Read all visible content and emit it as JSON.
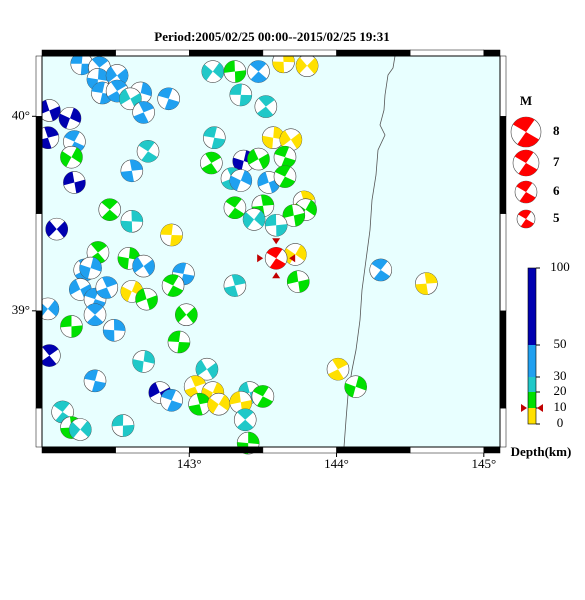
{
  "map": {
    "title": "Period:2005/02/25 00:00--2015/02/25 19:31",
    "xlim": [
      142,
      145.11
    ],
    "ylim": [
      38.3,
      40.31
    ],
    "xticks": [
      {
        "value": 143,
        "label": "143°"
      },
      {
        "value": 144,
        "label": "144°"
      },
      {
        "value": 145,
        "label": "145°"
      }
    ],
    "yticks": [
      {
        "value": 39,
        "label": "39°"
      },
      {
        "value": 40,
        "label": "40°"
      }
    ],
    "magnitude_legend": {
      "title": "M",
      "values": [
        8,
        7,
        6,
        5
      ],
      "color": "#ff0000"
    },
    "depth_scale": {
      "label": "Depth(km)",
      "ticks": [
        0,
        10,
        20,
        30,
        50,
        100
      ],
      "band_colors": [
        "#ffe000",
        "#00e000",
        "#20c8c8",
        "#20a0f0",
        "#0000b0"
      ]
    },
    "mainshock": {
      "lon": 143.59,
      "lat": 39.27,
      "depth": 10,
      "color": "#ff0000"
    },
    "events": [
      [
        142.27,
        40.27,
        40
      ],
      [
        142.39,
        40.25,
        40
      ],
      [
        142.38,
        40.19,
        40
      ],
      [
        142.51,
        40.21,
        40
      ],
      [
        142.41,
        40.12,
        40
      ],
      [
        142.51,
        40.13,
        40
      ],
      [
        142.67,
        40.12,
        40
      ],
      [
        142.6,
        40.09,
        25
      ],
      [
        142.86,
        40.09,
        40
      ],
      [
        142.69,
        40.02,
        40
      ],
      [
        142.19,
        39.99,
        70
      ],
      [
        142.05,
        40.03,
        70
      ],
      [
        142.22,
        39.87,
        40
      ],
      [
        142.04,
        39.89,
        70
      ],
      [
        142.2,
        39.79,
        15
      ],
      [
        142.22,
        39.66,
        70
      ],
      [
        142.72,
        39.82,
        25
      ],
      [
        142.61,
        39.72,
        40
      ],
      [
        143.16,
        40.23,
        25
      ],
      [
        143.31,
        40.23,
        15
      ],
      [
        143.47,
        40.23,
        40
      ],
      [
        143.64,
        40.28,
        5
      ],
      [
        143.8,
        40.26,
        5
      ],
      [
        143.35,
        40.11,
        25
      ],
      [
        143.52,
        40.05,
        25
      ],
      [
        143.57,
        39.89,
        5
      ],
      [
        143.69,
        39.88,
        5
      ],
      [
        143.17,
        39.89,
        25
      ],
      [
        143.15,
        39.76,
        15
      ],
      [
        143.37,
        39.77,
        70
      ],
      [
        143.47,
        39.78,
        15
      ],
      [
        143.65,
        39.79,
        15
      ],
      [
        143.29,
        39.68,
        25
      ],
      [
        143.35,
        39.67,
        40
      ],
      [
        143.54,
        39.66,
        40
      ],
      [
        143.65,
        39.69,
        15
      ],
      [
        143.78,
        39.56,
        5
      ],
      [
        143.79,
        39.52,
        15
      ],
      [
        143.71,
        39.49,
        15
      ],
      [
        143.31,
        39.53,
        15
      ],
      [
        143.5,
        39.54,
        15
      ],
      [
        143.44,
        39.47,
        25
      ],
      [
        143.59,
        39.44,
        25
      ],
      [
        142.46,
        39.52,
        15
      ],
      [
        142.61,
        39.46,
        25
      ],
      [
        142.1,
        39.42,
        70
      ],
      [
        142.88,
        39.39,
        5
      ],
      [
        142.38,
        39.3,
        15
      ],
      [
        142.59,
        39.27,
        15
      ],
      [
        142.69,
        39.23,
        40
      ],
      [
        142.96,
        39.19,
        40
      ],
      [
        142.29,
        39.21,
        40
      ],
      [
        142.33,
        39.22,
        40
      ],
      [
        142.26,
        39.11,
        40
      ],
      [
        142.36,
        39.06,
        40
      ],
      [
        142.44,
        39.12,
        40
      ],
      [
        142.61,
        39.1,
        5
      ],
      [
        142.71,
        39.06,
        15
      ],
      [
        142.89,
        39.13,
        15
      ],
      [
        143.31,
        39.13,
        25
      ],
      [
        143.72,
        39.29,
        5
      ],
      [
        143.74,
        39.15,
        15
      ],
      [
        144.3,
        39.21,
        40
      ],
      [
        144.61,
        39.14,
        5
      ],
      [
        142.04,
        39.01,
        40
      ],
      [
        142.2,
        38.92,
        15
      ],
      [
        142.36,
        38.98,
        40
      ],
      [
        142.49,
        38.9,
        40
      ],
      [
        142.98,
        38.98,
        15
      ],
      [
        142.93,
        38.84,
        15
      ],
      [
        142.05,
        38.77,
        70
      ],
      [
        142.69,
        38.74,
        25
      ],
      [
        143.12,
        38.7,
        25
      ],
      [
        142.36,
        38.64,
        40
      ],
      [
        144.01,
        38.7,
        5
      ],
      [
        144.13,
        38.61,
        15
      ],
      [
        142.8,
        38.58,
        70
      ],
      [
        142.88,
        38.54,
        40
      ],
      [
        143.04,
        38.61,
        5
      ],
      [
        143.16,
        38.58,
        5
      ],
      [
        143.41,
        38.58,
        25
      ],
      [
        143.5,
        38.56,
        15
      ],
      [
        143.07,
        38.52,
        15
      ],
      [
        143.2,
        38.52,
        5
      ],
      [
        143.35,
        38.53,
        5
      ],
      [
        142.14,
        38.48,
        25
      ],
      [
        142.2,
        38.4,
        15
      ],
      [
        142.26,
        38.39,
        25
      ],
      [
        142.55,
        38.41,
        25
      ],
      [
        143.38,
        38.44,
        25
      ],
      [
        143.4,
        38.32,
        15
      ]
    ]
  }
}
